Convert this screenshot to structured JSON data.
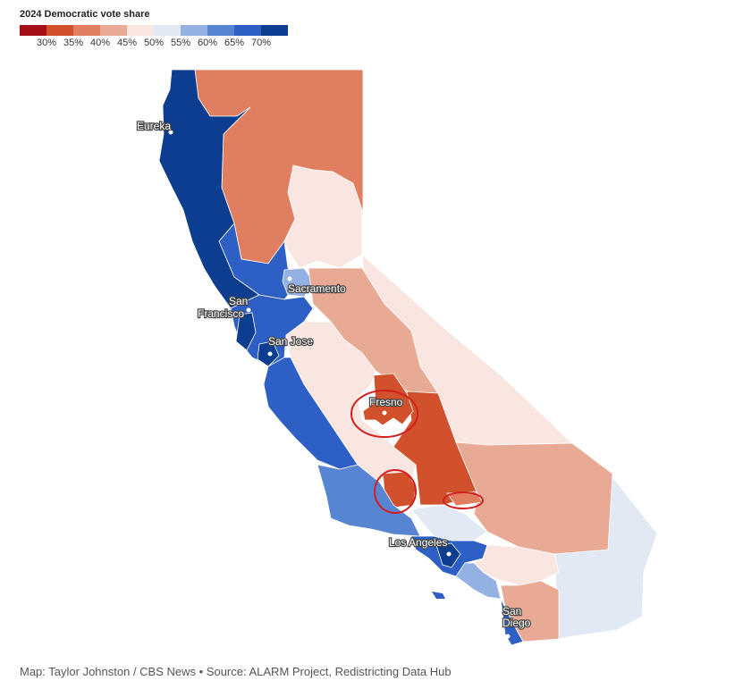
{
  "legend": {
    "title": "2024 Democratic vote share",
    "bins": [
      {
        "color": "#a50f15"
      },
      {
        "color": "#d0512b"
      },
      {
        "color": "#df7f60"
      },
      {
        "color": "#e8aa94"
      },
      {
        "color": "#f9e6e1"
      },
      {
        "color": "#e1e9f5"
      },
      {
        "color": "#93b1e3"
      },
      {
        "color": "#5885d2"
      },
      {
        "color": "#2d5fc4"
      },
      {
        "color": "#0d3d8e"
      }
    ],
    "ticks": [
      "30%",
      "35%",
      "40%",
      "45%",
      "50%",
      "55%",
      "60%",
      "65%",
      "70%"
    ]
  },
  "cities": {
    "eureka": "Eureka",
    "sacramento": "Sacramento",
    "san_francisco_1": "San",
    "san_francisco_2": "Francisco",
    "san_jose": "San Jose",
    "fresno": "Fresno",
    "los_angeles": "Los Angeles",
    "san_diego_1": "San",
    "san_diego_2": "Diego"
  },
  "annotations": [
    "fresno-circle",
    "kern-circle",
    "bakersfield-circle"
  ],
  "credit": "Map: Taylor Johnston / CBS News • Source: ALARM Project, Redistricting Data Hub"
}
